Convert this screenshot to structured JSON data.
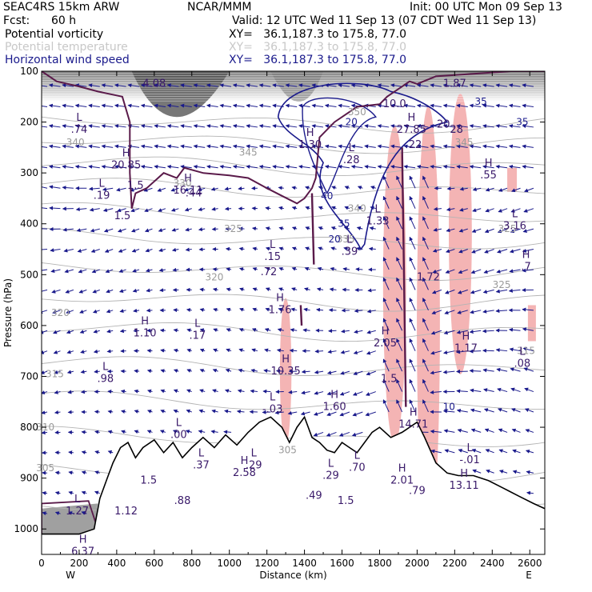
{
  "header": {
    "model": "SEAC4RS 15km ARW",
    "center": "NCAR/MMM",
    "init": "Init: 00 UTC Mon 09 Sep 13",
    "fcst_label": "Fcst:",
    "fcst_value": "60 h",
    "valid": "Valid: 12 UTC Wed 11 Sep 13 (07 CDT Wed 11 Sep 13)",
    "fields": [
      {
        "name": "Potential vorticity",
        "xy": "XY=   36.1,187.3 to 175.8, 77.0",
        "color": "#000000"
      },
      {
        "name": "Potential temperature",
        "xy": "XY=   36.1,187.3 to 175.8, 77.0",
        "color": "#c8c8c8"
      },
      {
        "name": "Horizontal wind speed",
        "xy": "XY=   36.1,187.3 to 175.8, 77.0",
        "color": "#1a1a8c"
      }
    ]
  },
  "chart_data": {
    "type": "vertical cross-section",
    "xlabel": "Distance (km)",
    "ylabel": "Pressure (hPa)",
    "xlim": [
      0,
      2680
    ],
    "ylim": [
      100,
      1050
    ],
    "x_ticks": [
      "0",
      "200",
      "400",
      "600",
      "800",
      "1000",
      "1200",
      "1400",
      "1600",
      "1800",
      "2000",
      "2200",
      "2400",
      "2600"
    ],
    "y_ticks": [
      "100",
      "200",
      "300",
      "400",
      "500",
      "600",
      "700",
      "800",
      "900",
      "1000"
    ],
    "x_end_labels": {
      "left": "W",
      "right": "E"
    },
    "colors": {
      "pv_contour": "#5a1a4a",
      "theta": "#b4b4b4",
      "wind": "#1a1a8c",
      "pink": "#f4b4b4",
      "terrain": "#000000"
    },
    "theta_labels": [
      {
        "x": 180,
        "p": 240,
        "text": "340"
      },
      {
        "x": 750,
        "p": 320,
        "text": "330"
      },
      {
        "x": 1680,
        "p": 370,
        "text": "340"
      },
      {
        "x": 1100,
        "p": 260,
        "text": "345"
      },
      {
        "x": 2250,
        "p": 240,
        "text": "345"
      },
      {
        "x": 1020,
        "p": 410,
        "text": "325"
      },
      {
        "x": 2480,
        "p": 410,
        "text": "325"
      },
      {
        "x": 920,
        "p": 505,
        "text": "320"
      },
      {
        "x": 2450,
        "p": 520,
        "text": "325"
      },
      {
        "x": 100,
        "p": 575,
        "text": "320"
      },
      {
        "x": 70,
        "p": 695,
        "text": "315"
      },
      {
        "x": 2580,
        "p": 650,
        "text": "315"
      },
      {
        "x": 20,
        "p": 800,
        "text": "310"
      },
      {
        "x": 20,
        "p": 880,
        "text": "305"
      },
      {
        "x": 1310,
        "p": 845,
        "text": "305"
      },
      {
        "x": 1680,
        "p": 180,
        "text": "350"
      },
      {
        "x": 1620,
        "p": 430,
        "text": "335"
      }
    ],
    "extrema": [
      {
        "x": 200,
        "p": 210,
        "letter": "L",
        "value": ".74"
      },
      {
        "x": 450,
        "p": 280,
        "letter": "H",
        "value": "20.85"
      },
      {
        "x": 320,
        "p": 340,
        "letter": "L",
        "value": ".19"
      },
      {
        "x": 500,
        "p": 320,
        "letter": "",
        "value": "1.5"
      },
      {
        "x": 780,
        "p": 330,
        "letter": "H",
        "value": "16.11"
      },
      {
        "x": 810,
        "p": 335,
        "letter": "",
        "value": ".44"
      },
      {
        "x": 1230,
        "p": 460,
        "letter": "L",
        "value": ".15"
      },
      {
        "x": 1210,
        "p": 490,
        "letter": "",
        "value": ".72"
      },
      {
        "x": 1640,
        "p": 450,
        "letter": "L",
        "value": ".39"
      },
      {
        "x": 1430,
        "p": 240,
        "letter": "H",
        "value": "1.30"
      },
      {
        "x": 1650,
        "p": 270,
        "letter": "L",
        "value": ".28"
      },
      {
        "x": 1970,
        "p": 210,
        "letter": "H",
        "value": "27.85"
      },
      {
        "x": 2140,
        "p": 200,
        "letter": "",
        "value": "20"
      },
      {
        "x": 2210,
        "p": 210,
        "letter": "",
        "value": "28"
      },
      {
        "x": 1990,
        "p": 240,
        "letter": "",
        "value": "22"
      },
      {
        "x": 2380,
        "p": 300,
        "letter": "H",
        "value": ".55"
      },
      {
        "x": 1790,
        "p": 390,
        "letter": "L",
        "value": "1.33"
      },
      {
        "x": 2520,
        "p": 400,
        "letter": "L",
        "value": "3.16"
      },
      {
        "x": 2580,
        "p": 480,
        "letter": "H",
        "value": ".7"
      },
      {
        "x": 2060,
        "p": 500,
        "letter": "",
        "value": "1.72"
      },
      {
        "x": 1270,
        "p": 565,
        "letter": "H",
        "value": "1.76"
      },
      {
        "x": 550,
        "p": 610,
        "letter": "H",
        "value": "1.10"
      },
      {
        "x": 830,
        "p": 615,
        "letter": "L",
        "value": ".17"
      },
      {
        "x": 1830,
        "p": 630,
        "letter": "H",
        "value": "2.05"
      },
      {
        "x": 2260,
        "p": 640,
        "letter": "H",
        "value": "1.17"
      },
      {
        "x": 2560,
        "p": 670,
        "letter": "L",
        "value": ".08"
      },
      {
        "x": 340,
        "p": 700,
        "letter": "L",
        "value": ".98"
      },
      {
        "x": 1300,
        "p": 685,
        "letter": "H",
        "value": "10.35"
      },
      {
        "x": 1850,
        "p": 700,
        "letter": "",
        "value": "1.5"
      },
      {
        "x": 1230,
        "p": 760,
        "letter": "L",
        "value": "-.03"
      },
      {
        "x": 1560,
        "p": 755,
        "letter": "H",
        "value": "1.60"
      },
      {
        "x": 730,
        "p": 810,
        "letter": "L",
        "value": ".00"
      },
      {
        "x": 1980,
        "p": 790,
        "letter": "H",
        "value": "14.71"
      },
      {
        "x": 850,
        "p": 870,
        "letter": "L",
        "value": ".37"
      },
      {
        "x": 1130,
        "p": 870,
        "letter": "L",
        "value": ".29"
      },
      {
        "x": 1080,
        "p": 885,
        "letter": "H",
        "value": "2.58"
      },
      {
        "x": 1540,
        "p": 890,
        "letter": "L",
        "value": ".29"
      },
      {
        "x": 1680,
        "p": 875,
        "letter": "L",
        "value": ".70"
      },
      {
        "x": 1920,
        "p": 900,
        "letter": "H",
        "value": "2.01"
      },
      {
        "x": 2280,
        "p": 860,
        "letter": "L",
        "value": "-.01"
      },
      {
        "x": 2250,
        "p": 910,
        "letter": "H",
        "value": "13.11"
      },
      {
        "x": 750,
        "p": 940,
        "letter": "",
        "value": ".88"
      },
      {
        "x": 1450,
        "p": 930,
        "letter": "",
        "value": ".49"
      },
      {
        "x": 1620,
        "p": 940,
        "letter": "",
        "value": "1.5"
      },
      {
        "x": 2000,
        "p": 920,
        "letter": "",
        "value": ".79"
      },
      {
        "x": 190,
        "p": 960,
        "letter": "L",
        "value": "1.27"
      },
      {
        "x": 220,
        "p": 1040,
        "letter": "H",
        "value": "6.37"
      },
      {
        "x": 450,
        "p": 960,
        "letter": "",
        "value": "1.12"
      },
      {
        "x": 570,
        "p": 900,
        "letter": "",
        "value": "1.5"
      },
      {
        "x": 430,
        "p": 380,
        "letter": "",
        "value": "1.5"
      },
      {
        "x": 1880,
        "p": 160,
        "letter": "",
        "value": "10.0"
      },
      {
        "x": 2200,
        "p": 120,
        "letter": "",
        "value": "1.87"
      },
      {
        "x": 600,
        "p": 120,
        "letter": "",
        "value": "4.08"
      }
    ],
    "wind_labels": [
      {
        "x": 1560,
        "p": 430,
        "text": "20"
      },
      {
        "x": 1650,
        "p": 200,
        "text": "20"
      },
      {
        "x": 1520,
        "p": 345,
        "text": "40"
      },
      {
        "x": 1610,
        "p": 400,
        "text": "35"
      },
      {
        "x": 2170,
        "p": 760,
        "text": "10"
      },
      {
        "x": 2340,
        "p": 160,
        "text": "35"
      },
      {
        "x": 2560,
        "p": 200,
        "text": "35"
      }
    ]
  }
}
